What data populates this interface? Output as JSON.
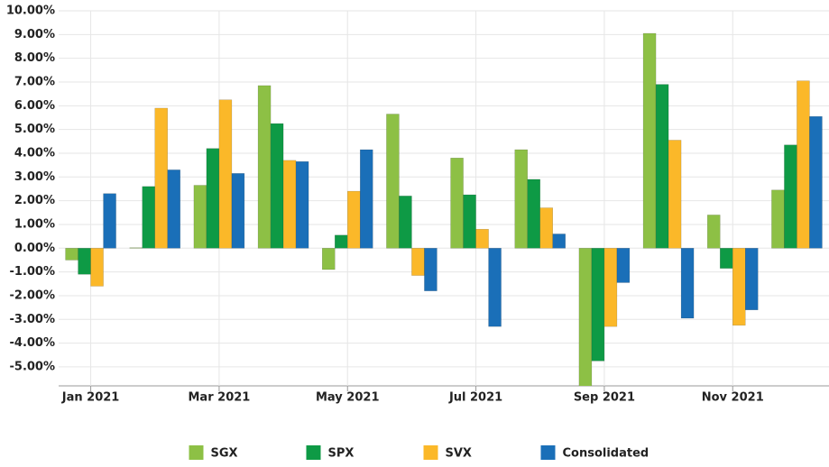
{
  "chart_data": {
    "type": "bar",
    "categories": [
      "Jan 2021",
      null,
      "Mar 2021",
      null,
      "May 2021",
      null,
      "Jul 2021",
      null,
      "Sep 2021",
      null,
      "Nov 2021",
      null
    ],
    "series": [
      {
        "name": "SGX",
        "color": "#8dc045",
        "values": [
          -0.5,
          0.02,
          2.65,
          6.85,
          -0.9,
          5.65,
          3.8,
          4.15,
          -6.0,
          9.05,
          1.4,
          2.45
        ]
      },
      {
        "name": "SPX",
        "color": "#0e9a45",
        "values": [
          -1.1,
          2.6,
          4.2,
          5.25,
          0.55,
          2.2,
          2.25,
          2.9,
          -4.75,
          6.9,
          -0.85,
          4.35
        ]
      },
      {
        "name": "SVX",
        "color": "#fbb829",
        "values": [
          -1.6,
          5.9,
          6.25,
          3.7,
          2.4,
          -1.15,
          0.8,
          1.7,
          -3.3,
          4.55,
          -3.25,
          7.05
        ]
      },
      {
        "name": "Consolidated",
        "color": "#1a6fb8",
        "values": [
          2.3,
          3.3,
          3.15,
          3.65,
          4.15,
          -1.8,
          -3.3,
          0.6,
          -1.45,
          -2.95,
          -2.6,
          5.55
        ]
      }
    ],
    "ylim": [
      -5.8,
      10
    ],
    "yticks": [
      {
        "value": -5,
        "label": "-5.00%"
      },
      {
        "value": -4,
        "label": "-4.00%"
      },
      {
        "value": -3,
        "label": "-3.00%"
      },
      {
        "value": -2,
        "label": "-2.00%"
      },
      {
        "value": -1,
        "label": "-1.00%"
      },
      {
        "value": 0,
        "label": "0.00%"
      },
      {
        "value": 1,
        "label": "1.00%"
      },
      {
        "value": 2,
        "label": "2.00%"
      },
      {
        "value": 3,
        "label": "3.00%"
      },
      {
        "value": 4,
        "label": "4.00%"
      },
      {
        "value": 5,
        "label": "5.00%"
      },
      {
        "value": 6,
        "label": "6.00%"
      },
      {
        "value": 7,
        "label": "7.00%"
      },
      {
        "value": 8,
        "label": "8.00%"
      },
      {
        "value": 9,
        "label": "9.00%"
      },
      {
        "value": 10,
        "label": "10.00%"
      }
    ],
    "grid": true
  }
}
